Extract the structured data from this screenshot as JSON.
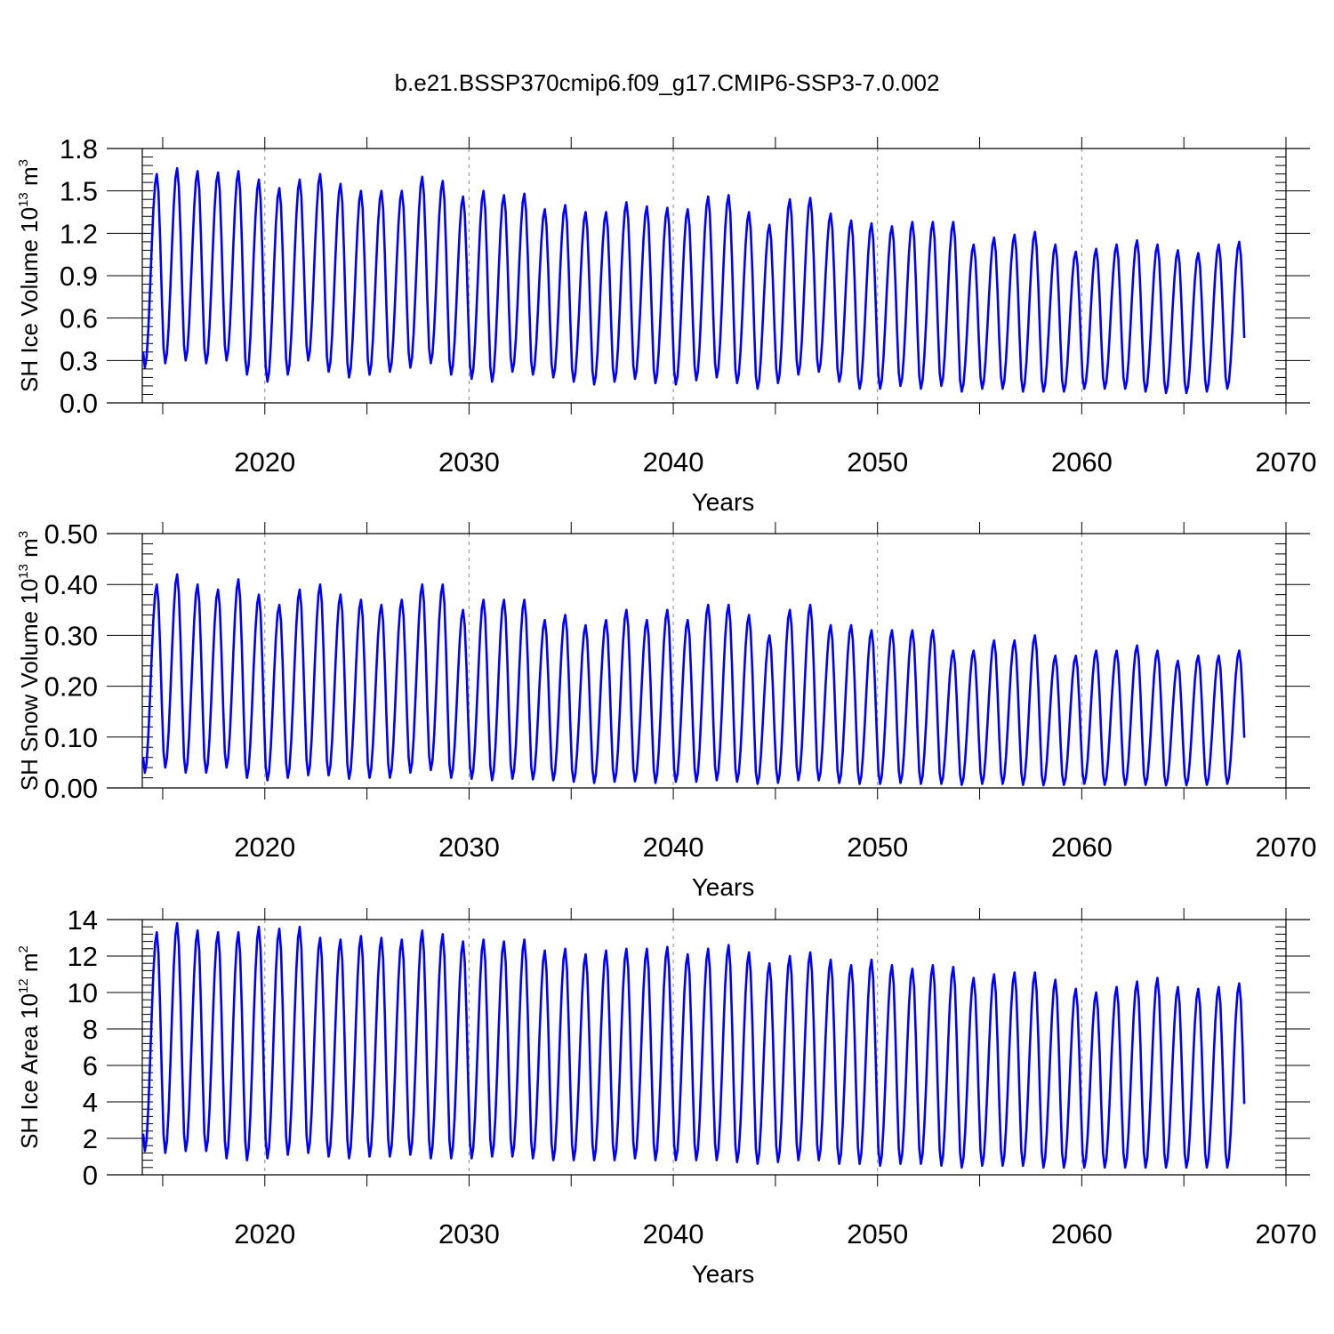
{
  "figure": {
    "title": "b.e21.BSSP370cmip6.f09_g17.CMIP6-SSP3-7.0.002",
    "line_color": "#0000ff"
  },
  "chart_data": [
    {
      "type": "line",
      "ylabel_main": "SH Ice Volume 10",
      "ylabel_exp": "13",
      "ylabel_unit": " m",
      "ylabel_unit_exp": "3",
      "xlabel": "Years",
      "xlim": [
        2014,
        2070
      ],
      "ylim": [
        0,
        1.8
      ],
      "yticks": [
        0,
        0.3,
        0.6,
        0.9,
        1.2,
        1.5,
        1.8
      ],
      "ytick_labels": [
        "0.0",
        "0.3",
        "0.6",
        "0.9",
        "1.2",
        "1.5",
        "1.8"
      ],
      "xticks": [
        2020,
        2030,
        2040,
        2050,
        2060,
        2070
      ],
      "xtick_labels": [
        "2020",
        "2030",
        "2040",
        "2050",
        "2060",
        "2070"
      ],
      "grid_x": [
        2020,
        2030,
        2040,
        2050,
        2060
      ],
      "annual_max": [
        1.62,
        1.66,
        1.64,
        1.63,
        1.64,
        1.58,
        1.52,
        1.58,
        1.62,
        1.55,
        1.5,
        1.5,
        1.5,
        1.6,
        1.57,
        1.46,
        1.5,
        1.47,
        1.48,
        1.37,
        1.4,
        1.35,
        1.35,
        1.42,
        1.39,
        1.38,
        1.37,
        1.46,
        1.47,
        1.35,
        1.26,
        1.44,
        1.45,
        1.34,
        1.29,
        1.27,
        1.25,
        1.28,
        1.28,
        1.28,
        1.12,
        1.17,
        1.19,
        1.21,
        1.12,
        1.07,
        1.09,
        1.12,
        1.15,
        1.12,
        1.08,
        1.06,
        1.12,
        1.14
      ],
      "annual_min": [
        0.25,
        0.28,
        0.3,
        0.28,
        0.3,
        0.2,
        0.15,
        0.2,
        0.3,
        0.22,
        0.18,
        0.2,
        0.22,
        0.25,
        0.28,
        0.2,
        0.17,
        0.15,
        0.22,
        0.2,
        0.18,
        0.15,
        0.13,
        0.15,
        0.17,
        0.14,
        0.13,
        0.16,
        0.18,
        0.14,
        0.1,
        0.14,
        0.2,
        0.22,
        0.15,
        0.1,
        0.1,
        0.12,
        0.1,
        0.12,
        0.08,
        0.1,
        0.1,
        0.08,
        0.08,
        0.08,
        0.1,
        0.1,
        0.1,
        0.08,
        0.07,
        0.07,
        0.08,
        0.1
      ]
    },
    {
      "type": "line",
      "ylabel_main": "SH Snow Volume 10",
      "ylabel_exp": "13",
      "ylabel_unit": " m",
      "ylabel_unit_exp": "3",
      "xlabel": "Years",
      "xlim": [
        2014,
        2070
      ],
      "ylim": [
        0,
        0.5
      ],
      "yticks": [
        0,
        0.1,
        0.2,
        0.3,
        0.4,
        0.5
      ],
      "ytick_labels": [
        "0.00",
        "0.10",
        "0.20",
        "0.30",
        "0.40",
        "0.50"
      ],
      "xticks": [
        2020,
        2030,
        2040,
        2050,
        2060,
        2070
      ],
      "xtick_labels": [
        "2020",
        "2030",
        "2040",
        "2050",
        "2060",
        "2070"
      ],
      "grid_x": [
        2020,
        2030,
        2040,
        2050,
        2060
      ],
      "annual_max": [
        0.4,
        0.42,
        0.4,
        0.39,
        0.41,
        0.38,
        0.36,
        0.39,
        0.4,
        0.38,
        0.37,
        0.36,
        0.37,
        0.4,
        0.4,
        0.35,
        0.37,
        0.37,
        0.37,
        0.33,
        0.34,
        0.32,
        0.33,
        0.35,
        0.33,
        0.35,
        0.33,
        0.36,
        0.36,
        0.34,
        0.3,
        0.35,
        0.36,
        0.32,
        0.32,
        0.31,
        0.31,
        0.31,
        0.31,
        0.27,
        0.27,
        0.29,
        0.29,
        0.3,
        0.26,
        0.26,
        0.27,
        0.27,
        0.28,
        0.27,
        0.25,
        0.26,
        0.26,
        0.27
      ],
      "annual_min": [
        0.03,
        0.04,
        0.03,
        0.03,
        0.04,
        0.02,
        0.015,
        0.02,
        0.025,
        0.025,
        0.018,
        0.02,
        0.02,
        0.03,
        0.035,
        0.02,
        0.018,
        0.015,
        0.018,
        0.017,
        0.015,
        0.012,
        0.01,
        0.012,
        0.013,
        0.01,
        0.012,
        0.012,
        0.015,
        0.012,
        0.008,
        0.01,
        0.015,
        0.015,
        0.01,
        0.008,
        0.008,
        0.01,
        0.008,
        0.008,
        0.006,
        0.008,
        0.008,
        0.006,
        0.005,
        0.006,
        0.008,
        0.006,
        0.006,
        0.006,
        0.005,
        0.005,
        0.006,
        0.008
      ]
    },
    {
      "type": "line",
      "ylabel_main": "SH Ice Area 10",
      "ylabel_exp": "12",
      "ylabel_unit": " m",
      "ylabel_unit_exp": "2",
      "xlabel": "Years",
      "xlim": [
        2014,
        2070
      ],
      "ylim": [
        0,
        14
      ],
      "yticks": [
        0,
        2,
        4,
        6,
        8,
        10,
        12,
        14
      ],
      "ytick_labels": [
        "0",
        "2",
        "4",
        "6",
        "8",
        "10",
        "12",
        "14"
      ],
      "xticks": [
        2020,
        2030,
        2040,
        2050,
        2060,
        2070
      ],
      "xtick_labels": [
        "2020",
        "2030",
        "2040",
        "2050",
        "2060",
        "2070"
      ],
      "grid_x": [
        2020,
        2030,
        2040,
        2050,
        2060
      ],
      "annual_max": [
        13.3,
        13.8,
        13.4,
        13.3,
        13.3,
        13.6,
        13.5,
        13.6,
        13.0,
        12.9,
        13.1,
        13.0,
        12.9,
        13.4,
        13.2,
        12.8,
        12.9,
        12.8,
        12.9,
        12.3,
        12.4,
        12.1,
        12.3,
        12.4,
        12.4,
        12.5,
        12.1,
        12.4,
        12.6,
        12.2,
        11.6,
        12.0,
        12.2,
        11.8,
        11.5,
        11.8,
        11.5,
        11.3,
        11.5,
        11.4,
        10.8,
        11.0,
        11.1,
        11.1,
        10.7,
        10.2,
        10.0,
        10.3,
        10.6,
        10.8,
        10.3,
        10.2,
        10.3,
        10.5
      ],
      "annual_min": [
        1.3,
        1.2,
        1.3,
        1.3,
        0.9,
        0.8,
        0.9,
        1.1,
        1.2,
        1.0,
        0.9,
        1.0,
        1.0,
        1.1,
        0.9,
        0.9,
        0.9,
        1.0,
        1.0,
        0.9,
        0.8,
        0.8,
        0.8,
        0.8,
        0.9,
        0.8,
        0.8,
        0.8,
        0.8,
        0.7,
        0.6,
        0.7,
        0.8,
        0.8,
        0.6,
        0.6,
        0.5,
        0.6,
        0.6,
        0.5,
        0.4,
        0.5,
        0.5,
        0.5,
        0.4,
        0.4,
        0.4,
        0.4,
        0.4,
        0.4,
        0.4,
        0.4,
        0.4,
        0.4
      ]
    }
  ]
}
